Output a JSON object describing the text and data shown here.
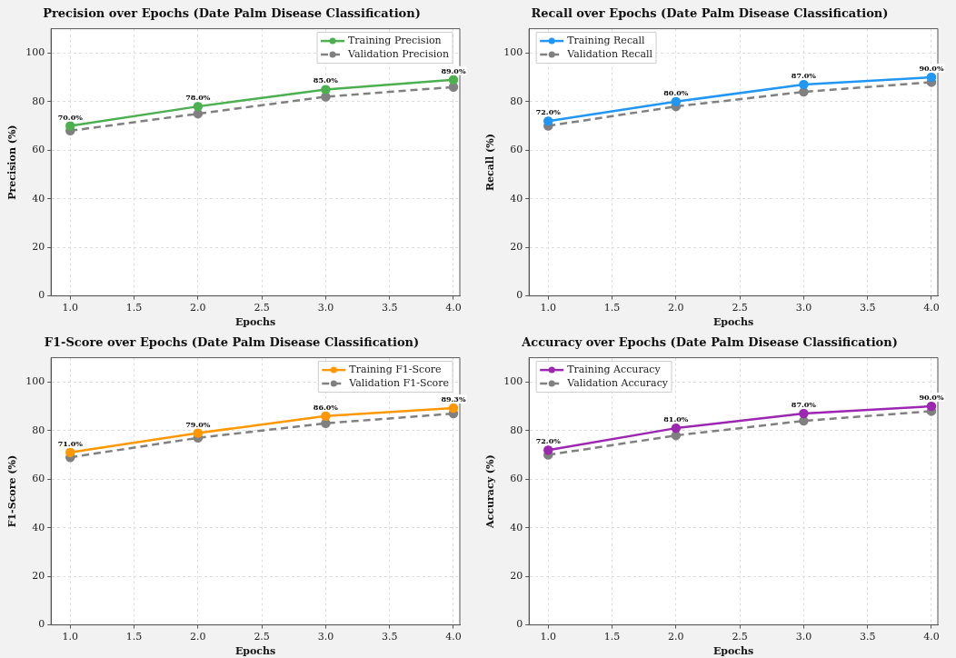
{
  "chart_data": [
    {
      "type": "line",
      "title": "Precision over Epochs (Date Palm Disease Classification)",
      "xlabel": "Epochs",
      "ylabel": "Precision (%)",
      "x": [
        1,
        2,
        3,
        4
      ],
      "xlim": [
        0.85,
        4.05
      ],
      "xticks": [
        {
          "value": 1,
          "label": "1.0"
        },
        {
          "value": 1.5,
          "label": "1.5"
        },
        {
          "value": 2,
          "label": "2.0"
        },
        {
          "value": 2.5,
          "label": "2.5"
        },
        {
          "value": 3,
          "label": "3.0"
        },
        {
          "value": 3.5,
          "label": "3.5"
        },
        {
          "value": 4,
          "label": "4.0"
        }
      ],
      "ylim": [
        0,
        110
      ],
      "yticks": [
        0,
        20,
        40,
        60,
        80,
        100
      ],
      "grid": true,
      "legend": "top right",
      "marker": "circle",
      "series": [
        {
          "name": "Training Precision",
          "color": "#4caf50",
          "values": [
            70,
            78,
            85,
            89
          ],
          "value_labels": [
            "70.0%",
            "78.0%",
            "85.0%",
            "89.0%"
          ],
          "line_style": "solid"
        },
        {
          "name": "Validation Precision",
          "color": "#808080",
          "values": [
            68,
            75,
            82,
            86
          ],
          "line_style": "dashed"
        }
      ]
    },
    {
      "type": "line",
      "title": "Recall over Epochs (Date Palm Disease Classification)",
      "xlabel": "Epochs",
      "ylabel": "Recall (%)",
      "x": [
        1,
        2,
        3,
        4
      ],
      "xlim": [
        0.85,
        4.05
      ],
      "xticks": [
        {
          "value": 1,
          "label": "1.0"
        },
        {
          "value": 1.5,
          "label": "1.5"
        },
        {
          "value": 2,
          "label": "2.0"
        },
        {
          "value": 2.5,
          "label": "2.5"
        },
        {
          "value": 3,
          "label": "3.0"
        },
        {
          "value": 3.5,
          "label": "3.5"
        },
        {
          "value": 4,
          "label": "4.0"
        }
      ],
      "ylim": [
        0,
        110
      ],
      "yticks": [
        0,
        20,
        40,
        60,
        80,
        100
      ],
      "grid": true,
      "legend": "top left",
      "marker": "circle",
      "series": [
        {
          "name": "Training Recall",
          "color": "#2196f3",
          "values": [
            72,
            80,
            87,
            90
          ],
          "value_labels": [
            "72.0%",
            "80.0%",
            "87.0%",
            "90.0%"
          ],
          "line_style": "solid"
        },
        {
          "name": "Validation Recall",
          "color": "#808080",
          "values": [
            70,
            78,
            84,
            88
          ],
          "line_style": "dashed"
        }
      ]
    },
    {
      "type": "line",
      "title": "F1-Score over Epochs (Date Palm Disease Classification)",
      "xlabel": "Epochs",
      "ylabel": "F1-Score (%)",
      "x": [
        1,
        2,
        3,
        4
      ],
      "xlim": [
        0.85,
        4.05
      ],
      "xticks": [
        {
          "value": 1,
          "label": "1.0"
        },
        {
          "value": 1.5,
          "label": "1.5"
        },
        {
          "value": 2,
          "label": "2.0"
        },
        {
          "value": 2.5,
          "label": "2.5"
        },
        {
          "value": 3,
          "label": "3.0"
        },
        {
          "value": 3.5,
          "label": "3.5"
        },
        {
          "value": 4,
          "label": "4.0"
        }
      ],
      "ylim": [
        0,
        110
      ],
      "yticks": [
        0,
        20,
        40,
        60,
        80,
        100
      ],
      "grid": true,
      "legend": "top right",
      "marker": "circle",
      "series": [
        {
          "name": "Training F1-Score",
          "color": "#ff9800",
          "values": [
            71,
            79,
            86,
            89.3
          ],
          "value_labels": [
            "71.0%",
            "79.0%",
            "86.0%",
            "89.3%"
          ],
          "line_style": "solid"
        },
        {
          "name": "Validation F1-Score",
          "color": "#808080",
          "values": [
            69,
            77,
            83,
            87
          ],
          "line_style": "dashed"
        }
      ]
    },
    {
      "type": "line",
      "title": "Accuracy over Epochs (Date Palm Disease Classification)",
      "xlabel": "Epochs",
      "ylabel": "Accuracy (%)",
      "x": [
        1,
        2,
        3,
        4
      ],
      "xlim": [
        0.85,
        4.05
      ],
      "xticks": [
        {
          "value": 1,
          "label": "1.0"
        },
        {
          "value": 1.5,
          "label": "1.5"
        },
        {
          "value": 2,
          "label": "2.0"
        },
        {
          "value": 2.5,
          "label": "2.5"
        },
        {
          "value": 3,
          "label": "3.0"
        },
        {
          "value": 3.5,
          "label": "3.5"
        },
        {
          "value": 4,
          "label": "4.0"
        }
      ],
      "ylim": [
        0,
        110
      ],
      "yticks": [
        0,
        20,
        40,
        60,
        80,
        100
      ],
      "grid": true,
      "legend": "top left",
      "marker": "circle",
      "series": [
        {
          "name": "Training Accuracy",
          "color": "#9c27b0",
          "values": [
            72,
            81,
            87,
            90
          ],
          "value_labels": [
            "72.0%",
            "81.0%",
            "87.0%",
            "90.0%"
          ],
          "line_style": "solid"
        },
        {
          "name": "Validation Accuracy",
          "color": "#808080",
          "values": [
            70,
            78,
            84,
            88
          ],
          "line_style": "dashed"
        }
      ]
    }
  ]
}
